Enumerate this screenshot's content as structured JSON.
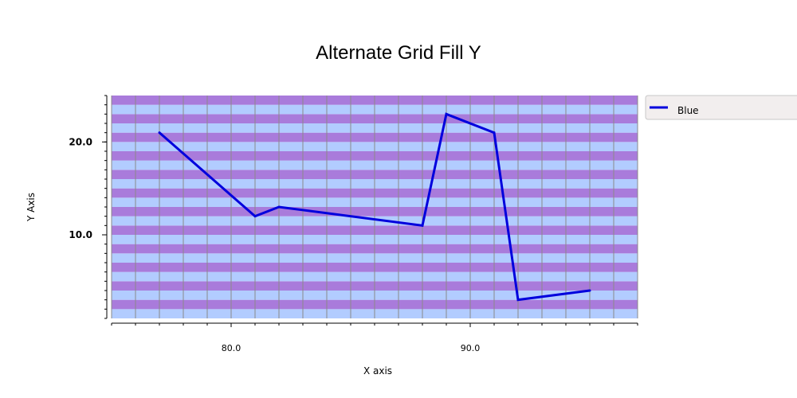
{
  "chart_data": {
    "type": "line",
    "title": "Alternate Grid Fill Y",
    "xlabel": "X axis",
    "ylabel": "Y Axis",
    "xlim": [
      75,
      97
    ],
    "ylim": [
      1,
      25
    ],
    "x_ticks": [
      {
        "value": 80,
        "label": "80.0"
      },
      {
        "value": 90,
        "label": "90.0"
      }
    ],
    "y_ticks": [
      {
        "value": 10,
        "label": "10.0"
      },
      {
        "value": 20,
        "label": "20.0"
      }
    ],
    "grid": true,
    "alternate_fill": {
      "axis": "y",
      "step": 1,
      "colors": [
        "#b2ccff",
        "#a97bdb"
      ]
    },
    "legend_position": "top-right",
    "series": [
      {
        "name": "Blue",
        "color": "#0000dd",
        "x": [
          77,
          81,
          82,
          88,
          89,
          91,
          92,
          95
        ],
        "y": [
          21,
          12,
          13,
          11,
          23,
          21,
          3,
          4
        ]
      }
    ]
  }
}
